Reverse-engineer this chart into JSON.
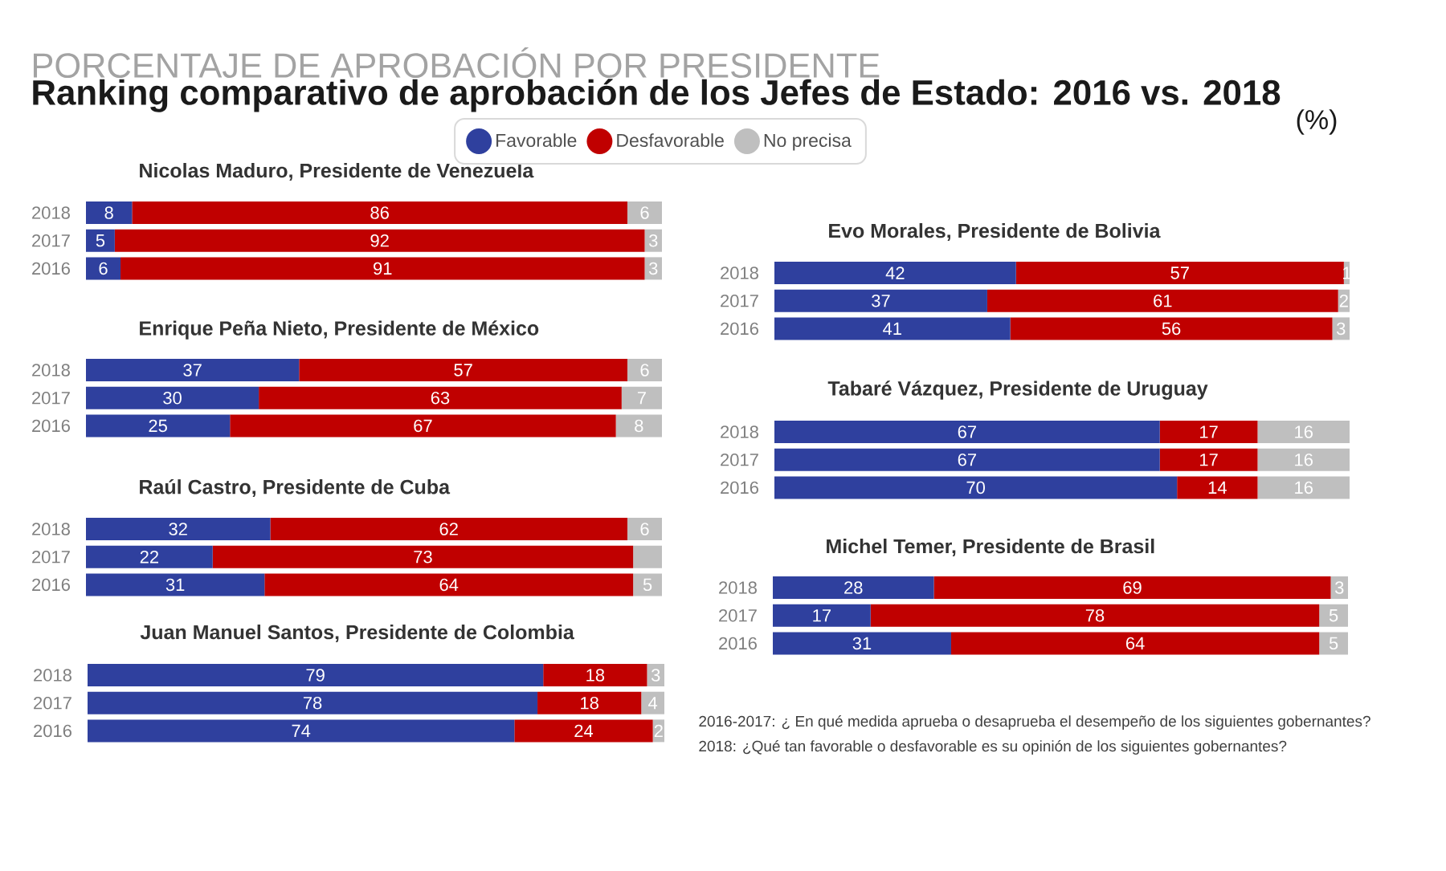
{
  "chart_data": [
    {
      "type": "other",
      "title": "PORCENTAJE DE APROBACIÓN POR PRESIDENTE",
      "subtitle": "Ranking comparativo de aprobación de los Jefes de Estado: 2016 vs. 2018",
      "annotations": [
        "(%)",
        "2016-2017: ¿ En qué medida aprueba o desaprueba el desempeño de los siguientes gobernantes?",
        "2018: ¿Qué tan favorable o desfavorable es su opinión de los siguientes gobernantes?"
      ]
    },
    {
      "type": "bar",
      "orientation": "horizontal",
      "stacked": true,
      "title": "Nicolas Maduro, Presidente de Venezuela",
      "categories": [
        "2018",
        "2017",
        "2016"
      ],
      "tick_labels": "y",
      "data_labels": true,
      "legend": "top",
      "series": [
        {
          "name": "Favorable",
          "color": "#2f409e",
          "values": [
            8,
            5,
            6
          ]
        },
        {
          "name": "Desfavorable",
          "color": "#c00000",
          "values": [
            86,
            92,
            91
          ]
        },
        {
          "name": "No precisa",
          "color": "#bfbfbf",
          "values": [
            6,
            3,
            3
          ]
        }
      ]
    },
    {
      "type": "bar",
      "orientation": "horizontal",
      "stacked": true,
      "title": "Enrique Peña Nieto, Presidente de México",
      "categories": [
        "2018",
        "2017",
        "2016"
      ],
      "tick_labels": "y",
      "data_labels": true,
      "series": [
        {
          "color": "#2f409e",
          "values": [
            37,
            30,
            25
          ]
        },
        {
          "color": "#c00000",
          "values": [
            57,
            63,
            67
          ]
        },
        {
          "color": "#bfbfbf",
          "values": [
            6,
            7,
            8
          ]
        }
      ]
    },
    {
      "type": "bar",
      "orientation": "horizontal",
      "stacked": true,
      "title": "Raúl Castro, Presidente de Cuba",
      "categories": [
        "2018",
        "2017",
        "2016"
      ],
      "tick_labels": "y",
      "series": [
        {
          "color": "#2f409e",
          "values": [
            32,
            22,
            31
          ],
          "value_labels": [
            "32",
            "22",
            "31"
          ]
        },
        {
          "color": "#c00000",
          "values": [
            62,
            73,
            64
          ],
          "value_labels": [
            "62",
            "73",
            "64"
          ]
        },
        {
          "color": "#bfbfbf",
          "values": [
            6,
            5,
            5
          ],
          "value_labels": [
            "6",
            null,
            "5"
          ]
        }
      ]
    },
    {
      "type": "bar",
      "orientation": "horizontal",
      "stacked": true,
      "title": "Juan Manuel Santos, Presidente de Colombia",
      "categories": [
        "2018",
        "2017",
        "2016"
      ],
      "tick_labels": "y",
      "data_labels": true,
      "series": [
        {
          "color": "#2f409e",
          "values": [
            79,
            78,
            74
          ]
        },
        {
          "color": "#c00000",
          "values": [
            18,
            18,
            24
          ]
        },
        {
          "color": "#bfbfbf",
          "values": [
            3,
            4,
            2
          ]
        }
      ]
    },
    {
      "type": "bar",
      "orientation": "horizontal",
      "stacked": true,
      "title": "Evo Morales, Presidente de Bolivia",
      "categories": [
        "2018",
        "2017",
        "2016"
      ],
      "tick_labels": "y",
      "data_labels": true,
      "series": [
        {
          "color": "#2f409e",
          "values": [
            42,
            37,
            41
          ]
        },
        {
          "color": "#c00000",
          "values": [
            57,
            61,
            56
          ]
        },
        {
          "color": "#bfbfbf",
          "values": [
            1,
            2,
            3
          ]
        }
      ]
    },
    {
      "type": "bar",
      "orientation": "horizontal",
      "stacked": true,
      "title": "Tabaré Vázquez, Presidente de Uruguay",
      "categories": [
        "2018",
        "2017",
        "2016"
      ],
      "tick_labels": "y",
      "data_labels": true,
      "series": [
        {
          "color": "#2f409e",
          "values": [
            67,
            67,
            70
          ]
        },
        {
          "color": "#c00000",
          "values": [
            17,
            17,
            14
          ]
        },
        {
          "color": "#bfbfbf",
          "values": [
            16,
            16,
            16
          ]
        }
      ]
    },
    {
      "type": "bar",
      "orientation": "horizontal",
      "stacked": true,
      "title": "Michel Temer, Presidente de Brasil",
      "categories": [
        "2018",
        "2017",
        "2016"
      ],
      "tick_labels": "y",
      "data_labels": true,
      "series": [
        {
          "color": "#2f409e",
          "values": [
            28,
            17,
            31
          ]
        },
        {
          "color": "#c00000",
          "values": [
            69,
            78,
            64
          ]
        },
        {
          "color": "#bfbfbf",
          "values": [
            3,
            5,
            5
          ]
        }
      ]
    }
  ]
}
